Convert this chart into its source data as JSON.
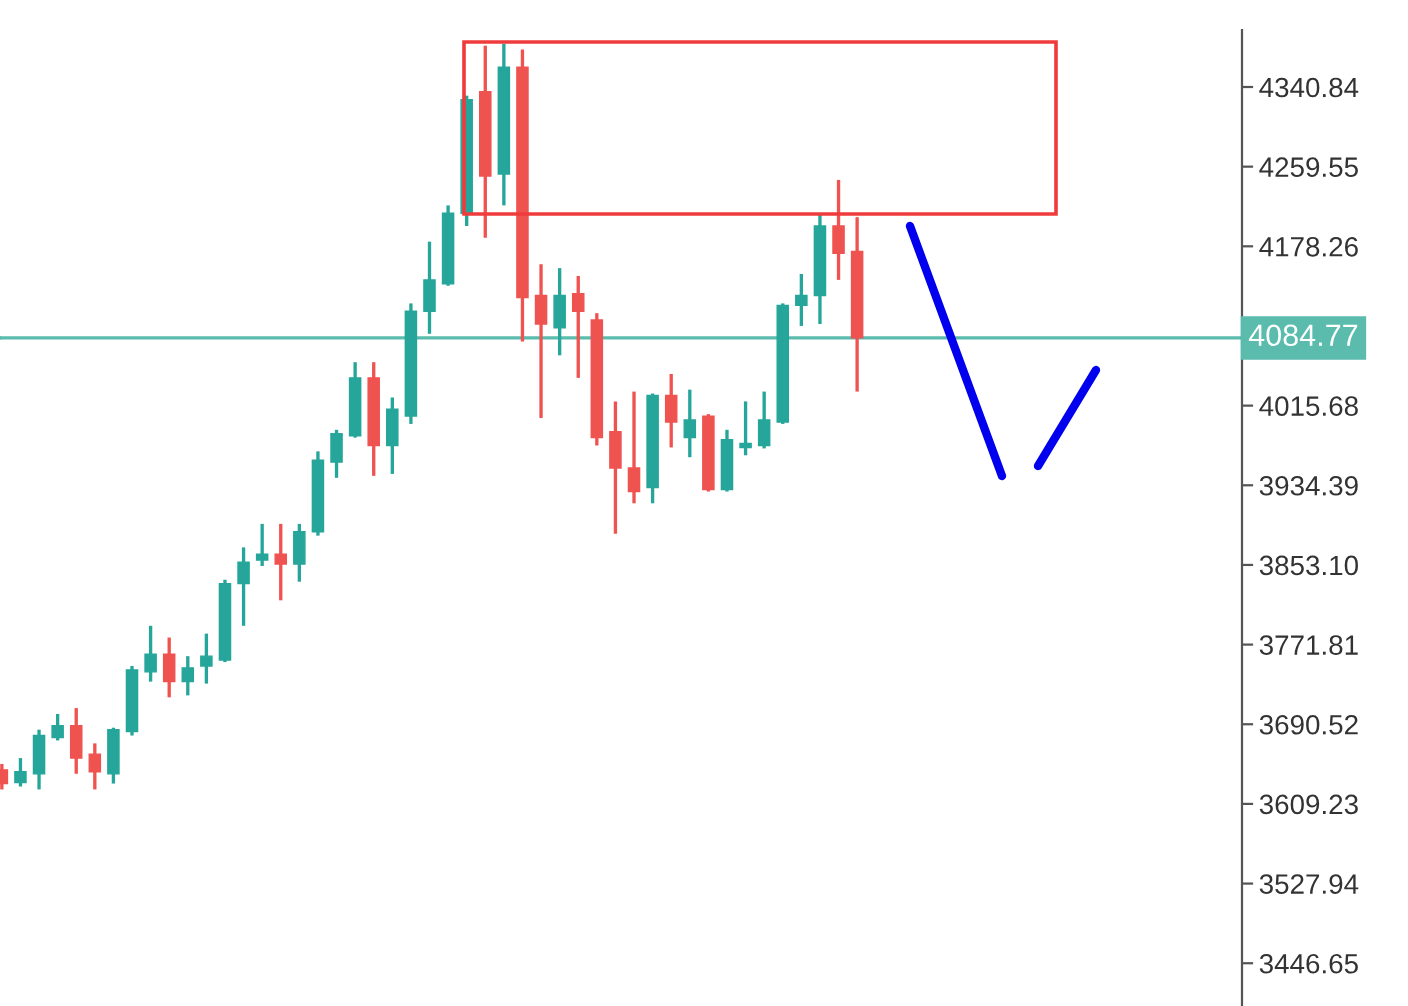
{
  "chart_data": {
    "type": "candlestick",
    "categories": [
      null,
      null,
      null,
      null,
      null,
      null,
      null,
      null,
      null,
      null,
      null,
      null,
      null,
      null,
      null,
      null,
      null,
      null,
      null,
      null,
      null,
      null,
      null,
      null,
      null,
      null,
      null,
      null,
      null,
      null,
      null,
      null,
      null,
      null,
      null,
      null,
      null,
      null,
      null,
      null,
      null,
      null,
      null,
      null,
      null,
      null,
      null,
      null,
      null,
      null,
      null,
      null,
      null,
      null,
      null,
      null,
      null,
      null,
      null,
      null,
      null,
      null,
      null,
      null,
      null,
      null,
      null
    ],
    "ohlc": [
      [
        3644,
        3650,
        3624,
        3630
      ],
      [
        3631,
        3656,
        3627,
        3642
      ],
      [
        3640,
        3685,
        3624,
        3679
      ],
      [
        3677,
        3701,
        3674,
        3689
      ],
      [
        3689,
        3707,
        3640,
        3656
      ],
      [
        3660,
        3671,
        3624,
        3642
      ],
      [
        3640,
        3687,
        3630,
        3685
      ],
      [
        3683,
        3750,
        3679,
        3746
      ],
      [
        3744,
        3791,
        3734,
        3762
      ],
      [
        3762,
        3779,
        3718,
        3734
      ],
      [
        3734,
        3760,
        3720,
        3748
      ],
      [
        3750,
        3783,
        3732,
        3760
      ],
      [
        3756,
        3838,
        3754,
        3834
      ],
      [
        3834,
        3871,
        3791,
        3856
      ],
      [
        3858,
        3895,
        3852,
        3864
      ],
      [
        3864,
        3895,
        3817,
        3854
      ],
      [
        3854,
        3895,
        3836,
        3887
      ],
      [
        3887,
        3969,
        3883,
        3960
      ],
      [
        3958,
        3991,
        3942,
        3987
      ],
      [
        3985,
        4060,
        3983,
        4044
      ],
      [
        4044,
        4060,
        3944,
        3975
      ],
      [
        3975,
        4024,
        3946,
        4012
      ],
      [
        4005,
        4120,
        3997,
        4112
      ],
      [
        4112,
        4183,
        4089,
        4144
      ],
      [
        4140,
        4220,
        4138,
        4212
      ],
      [
        4212,
        4332,
        4199,
        4328
      ],
      [
        4336,
        4383,
        4187,
        4250
      ],
      [
        4252,
        4385,
        4220,
        4361
      ],
      [
        4361,
        4379,
        4081,
        4126
      ],
      [
        4128,
        4160,
        4003,
        4099
      ],
      [
        4095,
        4156,
        4067,
        4128
      ],
      [
        4130,
        4148,
        4044,
        4112
      ],
      [
        4103,
        4110,
        3975,
        3983
      ],
      [
        3989,
        4020,
        3885,
        3952
      ],
      [
        3952,
        4030,
        3916,
        3928
      ],
      [
        3932,
        4028,
        3916,
        4026
      ],
      [
        4026,
        4048,
        3973,
        3999
      ],
      [
        3983,
        4032,
        3963,
        4001
      ],
      [
        4005,
        4007,
        3928,
        3930
      ],
      [
        3930,
        3991,
        3928,
        3981
      ],
      [
        3973,
        4020,
        3965,
        3977
      ],
      [
        3975,
        4030,
        3972,
        4001
      ],
      [
        3999,
        4120,
        3997,
        4118
      ],
      [
        4118,
        4150,
        4097,
        4128
      ],
      [
        4128,
        4212,
        4099,
        4199
      ],
      [
        4199,
        4246,
        4144,
        4171
      ],
      [
        4173,
        4208,
        4030,
        4084.77
      ],
      null,
      null,
      null,
      null,
      null,
      null,
      null,
      null,
      null,
      null,
      null,
      null,
      null,
      null,
      null,
      null,
      null,
      null,
      null,
      null
    ],
    "colors": [
      "#ef5350",
      "#26a69a",
      "#26a69a",
      "#26a69a",
      "#ef5350",
      "#ef5350",
      "#26a69a",
      "#26a69a",
      "#26a69a",
      "#ef5350",
      "#26a69a",
      "#26a69a",
      "#26a69a",
      "#26a69a",
      "#26a69a",
      "#ef5350",
      "#26a69a",
      "#26a69a",
      "#26a69a",
      "#26a69a",
      "#ef5350",
      "#26a69a",
      "#26a69a",
      "#26a69a",
      "#26a69a",
      "#26a69a",
      "#ef5350",
      "#26a69a",
      "#ef5350",
      "#ef5350",
      "#26a69a",
      "#ef5350",
      "#ef5350",
      "#ef5350",
      "#ef5350",
      "#26a69a",
      "#ef5350",
      "#26a69a",
      "#ef5350",
      "#26a69a",
      "#26a69a",
      "#26a69a",
      "#26a69a",
      "#26a69a",
      "#26a69a",
      "#ef5350",
      "#ef5350",
      null,
      null,
      null,
      null,
      null,
      null,
      null,
      null,
      null,
      null,
      null,
      null,
      null,
      null,
      null,
      null,
      null,
      null,
      null,
      null
    ],
    "ylim": [
      3403,
      4399
    ],
    "yticks": [
      3446.65,
      3527.94,
      3609.23,
      3690.52,
      3771.81,
      {
        "value": 3853.1,
        "label": "3853.10"
      },
      3934.39,
      4015.68,
      {
        "value": 4096.97,
        "label": null
      },
      4178.26,
      4259.55,
      4340.84
    ],
    "ref_lines": [
      {
        "axis": "y",
        "value": 4084.77,
        "label": "4084.77",
        "color": "#5bbcae"
      }
    ],
    "grid": false,
    "legend": false
  }
}
